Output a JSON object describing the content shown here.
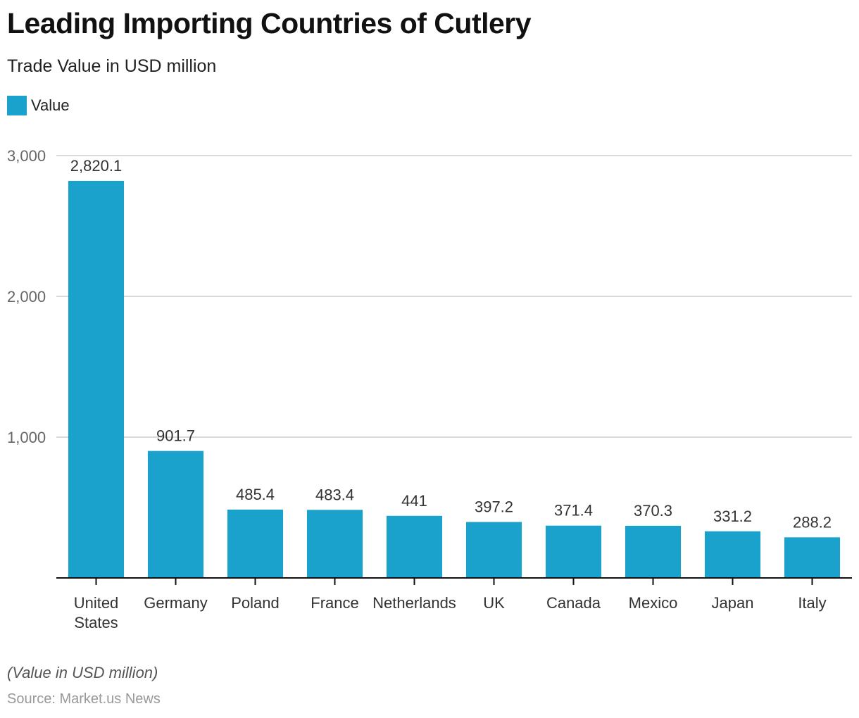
{
  "chart_data": {
    "type": "bar",
    "title": "Leading Importing Countries of Cutlery",
    "subtitle": "Trade Value in USD million",
    "legend": [
      {
        "name": "Value",
        "color": "#1aa1cc"
      }
    ],
    "legend_position": "top-left",
    "categories": [
      "United States",
      "Germany",
      "Poland",
      "France",
      "Netherlands",
      "UK",
      "Canada",
      "Mexico",
      "Japan",
      "Italy"
    ],
    "category_lines": [
      [
        "United",
        "States"
      ],
      [
        "Germany"
      ],
      [
        "Poland"
      ],
      [
        "France"
      ],
      [
        "Netherlands"
      ],
      [
        "UK"
      ],
      [
        "Canada"
      ],
      [
        "Mexico"
      ],
      [
        "Japan"
      ],
      [
        "Italy"
      ]
    ],
    "series": [
      {
        "name": "Value",
        "values": [
          2820.1,
          901.7,
          485.4,
          483.4,
          441,
          397.2,
          371.4,
          370.3,
          331.2,
          288.2
        ]
      }
    ],
    "data_labels": [
      "2,820.1",
      "901.7",
      "485.4",
      "483.4",
      "441",
      "397.2",
      "371.4",
      "370.3",
      "331.2",
      "288.2"
    ],
    "xlabel": "",
    "ylabel": "",
    "ylim": [
      0,
      3000
    ],
    "yticks": [
      1000,
      2000,
      3000
    ],
    "ytick_labels": [
      "1,000",
      "2,000",
      "3,000"
    ],
    "grid": true,
    "bar_color": "#1aa1cc"
  },
  "footer": {
    "note": "(Value in USD million)",
    "source": "Source: Market.us News"
  }
}
